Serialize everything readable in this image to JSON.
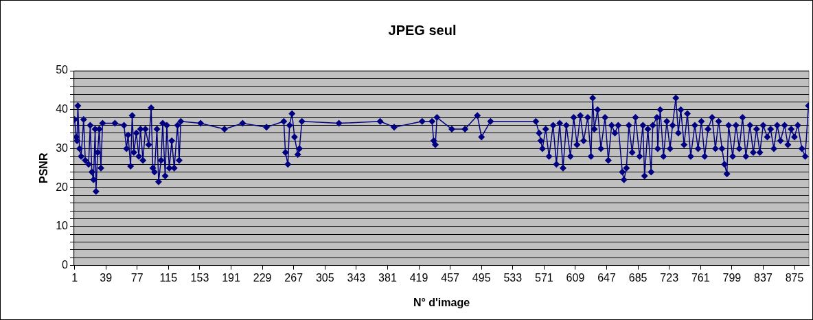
{
  "chart_data": {
    "type": "line",
    "title": "JPEG seul",
    "xlabel": "N° d'image",
    "ylabel": "PSNR",
    "marker": "diamond",
    "grid": "y",
    "x": [
      1,
      3,
      4,
      5,
      7,
      9,
      12,
      14,
      18,
      20,
      22,
      24,
      26,
      27,
      29,
      31,
      33,
      35,
      50,
      61,
      64,
      66,
      69,
      71,
      73,
      76,
      79,
      81,
      84,
      87,
      91,
      94,
      96,
      98,
      101,
      103,
      106,
      108,
      111,
      113,
      116,
      119,
      122,
      126,
      128,
      130,
      154,
      183,
      205,
      234,
      255,
      257,
      260,
      262,
      265,
      268,
      272,
      274,
      277,
      322,
      372,
      389,
      423,
      435,
      437,
      439,
      441,
      459,
      475,
      490,
      495,
      506,
      561,
      565,
      567,
      569,
      573,
      577,
      582,
      586,
      590,
      594,
      598,
      603,
      607,
      611,
      615,
      619,
      624,
      628,
      630,
      632,
      636,
      640,
      645,
      649,
      653,
      657,
      661,
      666,
      668,
      671,
      674,
      678,
      682,
      687,
      691,
      693,
      697,
      701,
      703,
      708,
      709,
      712,
      716,
      720,
      724,
      727,
      731,
      734,
      737,
      741,
      745,
      749,
      754,
      758,
      762,
      766,
      770,
      775,
      779,
      783,
      787,
      790,
      793,
      795,
      800,
      804,
      808,
      812,
      816,
      821,
      825,
      829,
      833,
      837,
      842,
      846,
      850,
      854,
      858,
      863,
      867,
      871,
      875,
      879,
      884,
      888,
      892
    ],
    "series": [
      {
        "color": "#000080",
        "values": [
          37.5,
          33,
          32,
          41,
          30,
          28,
          37.5,
          27,
          26,
          36,
          24,
          22,
          35,
          19,
          29,
          35,
          25,
          36.5,
          36.5,
          36,
          30,
          33.5,
          25.5,
          38.5,
          29,
          34,
          28,
          35,
          27,
          35,
          31,
          40.5,
          25,
          24,
          35,
          21.5,
          27,
          36.5,
          23,
          36,
          25,
          32,
          25,
          36,
          27,
          37,
          36.5,
          35,
          36.5,
          35.5,
          37,
          29,
          26,
          36,
          39,
          33,
          28.5,
          30,
          37,
          36.5,
          37,
          35.5,
          37,
          37,
          32,
          31,
          38,
          35,
          35,
          38.5,
          33,
          37,
          37,
          34,
          32,
          30,
          35,
          28,
          36,
          26,
          36.5,
          25,
          36,
          28,
          38,
          31,
          38.5,
          32,
          38,
          28,
          43,
          35,
          40,
          30,
          38,
          27,
          36,
          34,
          36,
          24,
          22,
          25,
          36,
          29,
          38,
          28,
          36,
          23,
          35,
          24,
          36,
          38,
          30,
          40,
          28,
          37,
          30,
          36,
          43,
          34,
          40,
          31,
          39,
          28,
          36,
          30,
          37,
          28,
          35,
          38,
          30,
          37,
          30,
          26,
          23.5,
          36,
          28,
          36,
          30,
          38,
          28,
          36,
          29,
          35,
          29,
          36,
          33,
          35,
          30,
          36,
          32,
          36,
          31,
          35,
          33,
          36,
          30,
          28,
          41
        ]
      }
    ],
    "xlim": [
      0.5,
      892.5
    ],
    "xticks": [
      1,
      39,
      77,
      115,
      153,
      191,
      229,
      267,
      305,
      343,
      381,
      419,
      457,
      495,
      533,
      571,
      609,
      647,
      685,
      723,
      761,
      799,
      837,
      875
    ],
    "ylim": [
      0,
      50
    ],
    "yticks": [
      0,
      {
        "value": 2,
        "label": null
      },
      {
        "value": 4,
        "label": null
      },
      {
        "value": 6,
        "label": null
      },
      {
        "value": 8,
        "label": null
      },
      10,
      {
        "value": 12,
        "label": null
      },
      {
        "value": 14,
        "label": null
      },
      {
        "value": 16,
        "label": null
      },
      {
        "value": 18,
        "label": null
      },
      20,
      {
        "value": 22,
        "label": null
      },
      {
        "value": 24,
        "label": null
      },
      {
        "value": 26,
        "label": null
      },
      {
        "value": 28,
        "label": null
      },
      30,
      {
        "value": 32,
        "label": null
      },
      {
        "value": 34,
        "label": null
      },
      {
        "value": 36,
        "label": null
      },
      {
        "value": 38,
        "label": null
      },
      40,
      {
        "value": 42,
        "label": null
      },
      {
        "value": 44,
        "label": null
      },
      {
        "value": 46,
        "label": null
      },
      {
        "value": 48,
        "label": null
      },
      50
    ]
  }
}
